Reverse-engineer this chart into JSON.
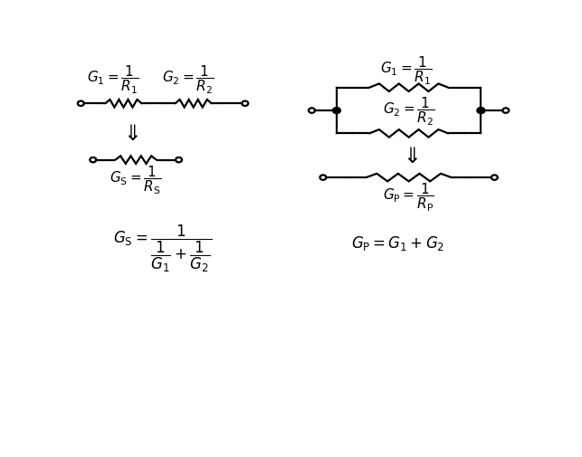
{
  "bg_color": "#ffffff",
  "fig_width": 6.43,
  "fig_height": 5.06,
  "dpi": 100,
  "formulas": {
    "series_G1": "$G_1 = \\dfrac{1}{R_1}$",
    "series_G2": "$G_2 = \\dfrac{1}{R_2}$",
    "parallel_G1": "$G_1 = \\dfrac{1}{R_1}$",
    "parallel_G2": "$G_2 = \\dfrac{1}{R_2}$",
    "series_GS_label": "$G_{\\mathrm{S}} = \\dfrac{1}{R_{\\mathrm{S}}}$",
    "parallel_GP_label": "$G_{\\mathrm{P}} = \\dfrac{1}{R_{\\mathrm{P}}}$",
    "series_formula": "$G_{\\mathrm{S}} = \\dfrac{1}{\\dfrac{1}{G_1} + \\dfrac{1}{G_2}}$",
    "parallel_formula": "$G_{\\mathrm{P}} = G_1 + G_2$"
  },
  "line_color": "#000000",
  "dot_color": "#000000",
  "font_size": 11
}
